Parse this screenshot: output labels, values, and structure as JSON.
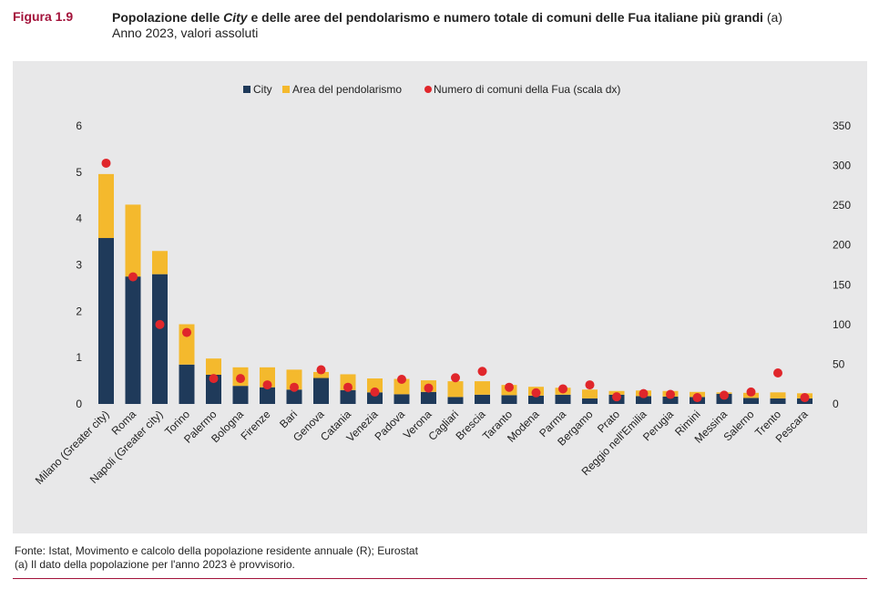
{
  "header": {
    "figure_label": "Figura 1.9",
    "title_part1": "Popolazione delle ",
    "title_italic": "City",
    "title_part2": " e delle aree del pendolarismo e numero totale di comuni delle Fua italiane più grandi",
    "title_note": " (a)",
    "subtitle": "Anno 2023, valori assoluti"
  },
  "footer": {
    "source": "Fonte: Istat, Movimento e calcolo della popolazione residente annuale (R); Eurostat",
    "note": "(a) Il dato della popolazione per l'anno 2023 è provvisorio."
  },
  "colors": {
    "city": "#1f3a5a",
    "area": "#f4b92d",
    "dot": "#e0262b",
    "accent": "#a3123a",
    "panel": "#e8e8e9"
  },
  "chart_data": {
    "type": "bar",
    "stacked": true,
    "categories": [
      "Milano (Greater city)",
      "Roma",
      "Napoli (Greater city)",
      "Torino",
      "Palermo",
      "Bologna",
      "Firenze",
      "Bari",
      "Genova",
      "Catania",
      "Venezia",
      "Padova",
      "Verona",
      "Cagliari",
      "Brescia",
      "Taranto",
      "Modena",
      "Parma",
      "Bergamo",
      "Prato",
      "Reggio nell'Emilia",
      "Perugia",
      "Rimini",
      "Messina",
      "Salerno",
      "Trento",
      "Pescara"
    ],
    "series": [
      {
        "name": "City",
        "axis": "left",
        "values": [
          3.58,
          2.75,
          2.8,
          0.85,
          0.63,
          0.39,
          0.36,
          0.31,
          0.56,
          0.3,
          0.25,
          0.21,
          0.26,
          0.15,
          0.2,
          0.19,
          0.18,
          0.2,
          0.12,
          0.2,
          0.17,
          0.16,
          0.15,
          0.22,
          0.13,
          0.12,
          0.12
        ]
      },
      {
        "name": "Area del pendolarismo",
        "axis": "left",
        "values": [
          1.38,
          1.55,
          0.5,
          0.87,
          0.35,
          0.4,
          0.43,
          0.43,
          0.13,
          0.34,
          0.3,
          0.33,
          0.25,
          0.34,
          0.29,
          0.22,
          0.19,
          0.15,
          0.19,
          0.08,
          0.12,
          0.12,
          0.11,
          0.03,
          0.11,
          0.13,
          0.11
        ]
      },
      {
        "name": "Numero di comuni della Fua (scala dx)",
        "axis": "right",
        "type": "scatter",
        "values": [
          303,
          160,
          100,
          90,
          32,
          32,
          24,
          21,
          43,
          21,
          15,
          31,
          20,
          33,
          41,
          21,
          14,
          19,
          24,
          9,
          13,
          12,
          8,
          11,
          15,
          39,
          8
        ]
      }
    ],
    "y_left": {
      "min": 0,
      "max": 6,
      "ticks": [
        "0",
        "1",
        "2",
        "3",
        "4",
        "5",
        "6"
      ]
    },
    "y_right": {
      "min": 0,
      "max": 350,
      "ticks": [
        "0",
        "50",
        "100",
        "150",
        "200",
        "250",
        "300",
        "350"
      ]
    },
    "legend": {
      "position": "top-center"
    },
    "grid": false
  }
}
